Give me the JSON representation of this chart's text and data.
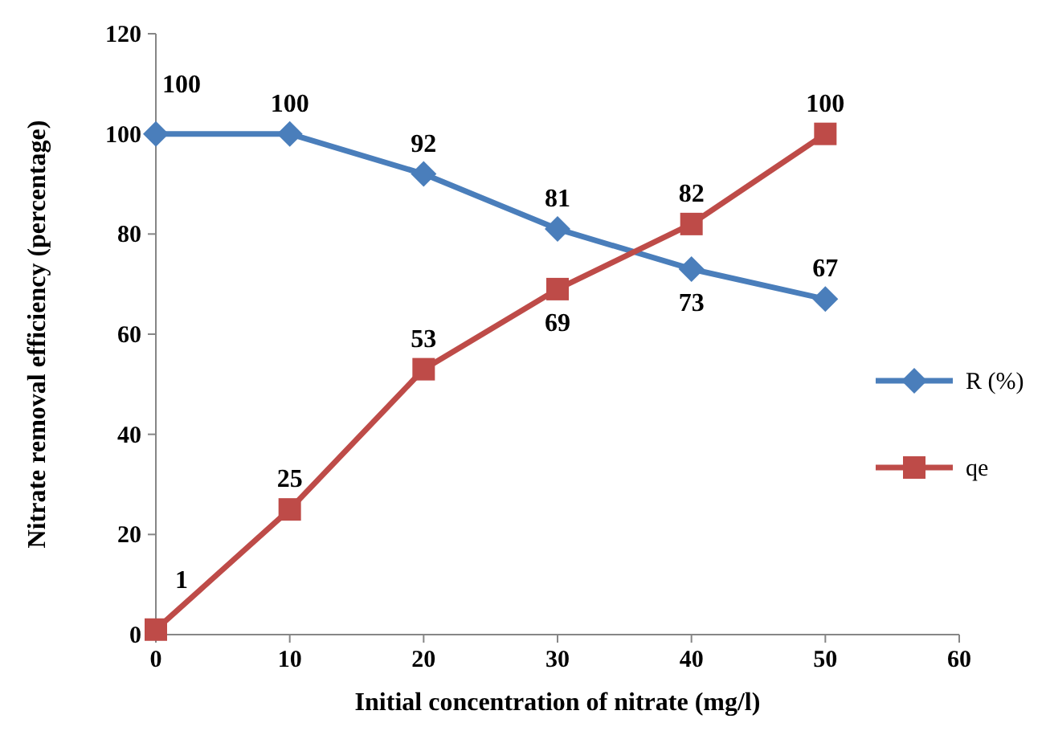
{
  "chart_data": {
    "type": "line",
    "xlabel": "Initial concentration of nitrate (mg/l)",
    "ylabel": "Nitrate removal efficiency (percentage)",
    "x": [
      0,
      10,
      20,
      30,
      40,
      50
    ],
    "series": [
      {
        "name": "R (%)",
        "color": "#4a7ebb",
        "marker": "diamond",
        "values": [
          100,
          100,
          92,
          81,
          73,
          67
        ]
      },
      {
        "name": "qe",
        "color": "#be4b48",
        "marker": "square",
        "values": [
          1,
          25,
          53,
          69,
          82,
          100
        ]
      }
    ],
    "xlim": [
      0,
      60
    ],
    "xticks": [
      0,
      10,
      20,
      30,
      40,
      50,
      60
    ],
    "ylim": [
      0,
      120
    ],
    "yticks": [
      0,
      20,
      40,
      60,
      80,
      100,
      120
    ],
    "grid": false,
    "legend": "right",
    "data_labels": true
  }
}
